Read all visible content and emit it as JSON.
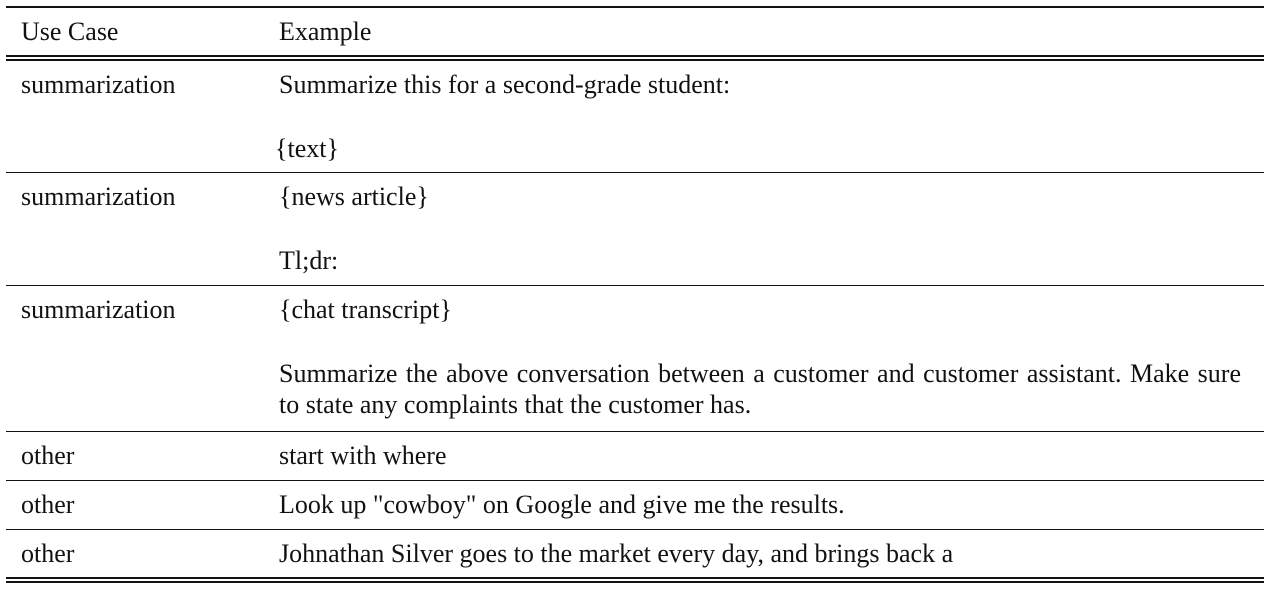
{
  "table": {
    "headers": {
      "use_case": "Use Case",
      "example": "Example"
    },
    "rows": [
      {
        "use_case": "summarization",
        "example": [
          "Summarize this for a second-grade student:",
          "{text}"
        ]
      },
      {
        "use_case": "summarization",
        "example": [
          "{news article}",
          "Tl;dr:"
        ]
      },
      {
        "use_case": "summarization",
        "example": [
          "{chat transcript}",
          "Summarize the above conversation between a customer and customer assistant. Make sure to state any complaints that the customer has."
        ]
      },
      {
        "use_case": "other",
        "example": [
          "start with where"
        ]
      },
      {
        "use_case": "other",
        "example": [
          "Look up \"cowboy\" on Google and give me the results."
        ]
      },
      {
        "use_case": "other",
        "example": [
          "Johnathan Silver goes to the market every day, and brings back a"
        ]
      }
    ]
  }
}
